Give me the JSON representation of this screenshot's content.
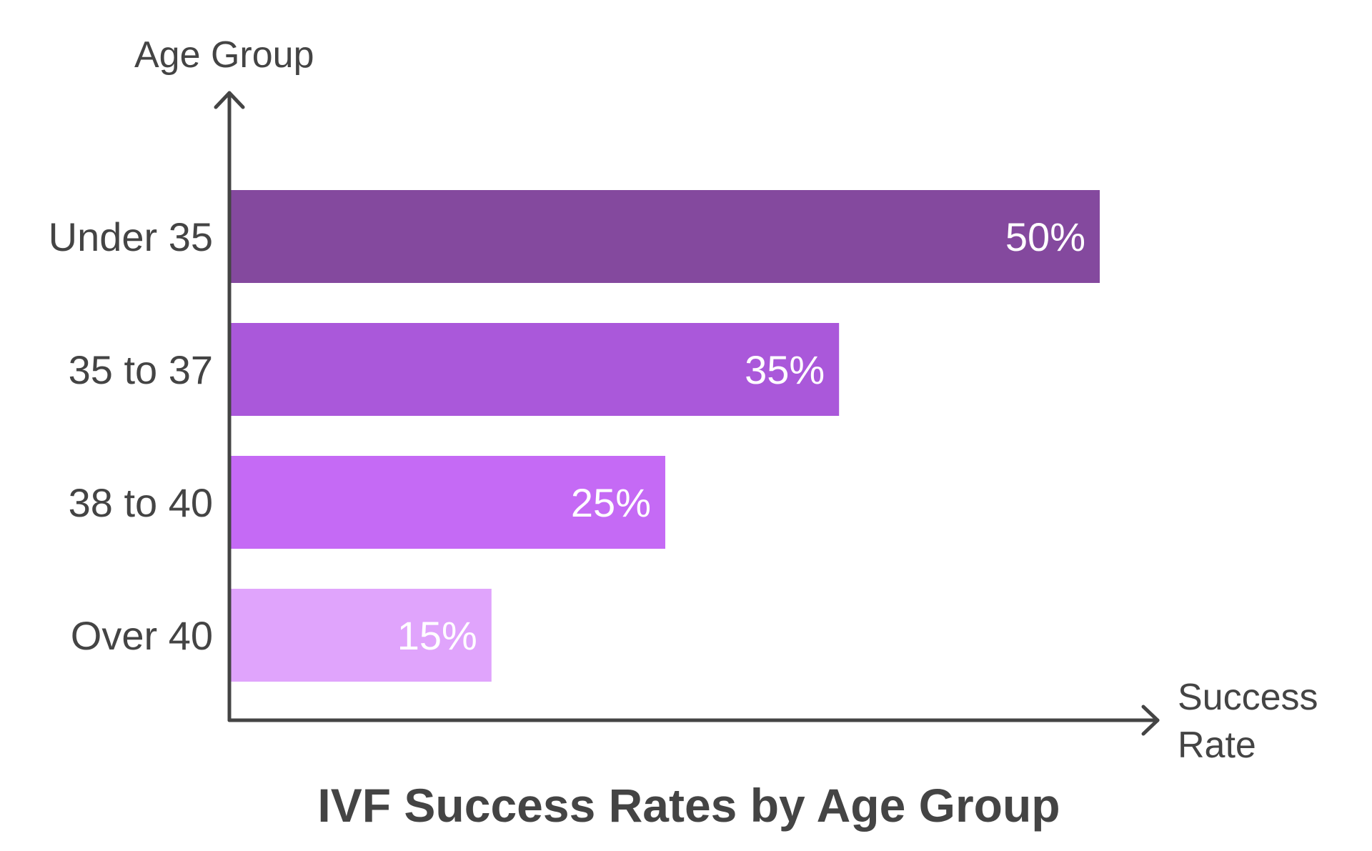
{
  "chart_data": {
    "type": "bar",
    "orientation": "horizontal",
    "title": "IVF Success Rates by Age Group",
    "ylabel": "Age Group",
    "xlabel_lines": [
      "Success",
      "Rate"
    ],
    "categories": [
      "Under 35",
      "35 to 37",
      "38 to 40",
      "Over 40"
    ],
    "values": [
      50,
      35,
      25,
      15
    ],
    "value_labels": [
      "50%",
      "35%",
      "25%",
      "15%"
    ],
    "unit": "%",
    "colors": [
      "#84499E",
      "#AA58DA",
      "#C56AF5",
      "#E0A4FC"
    ],
    "axis_color": "#444444",
    "grid": false
  }
}
